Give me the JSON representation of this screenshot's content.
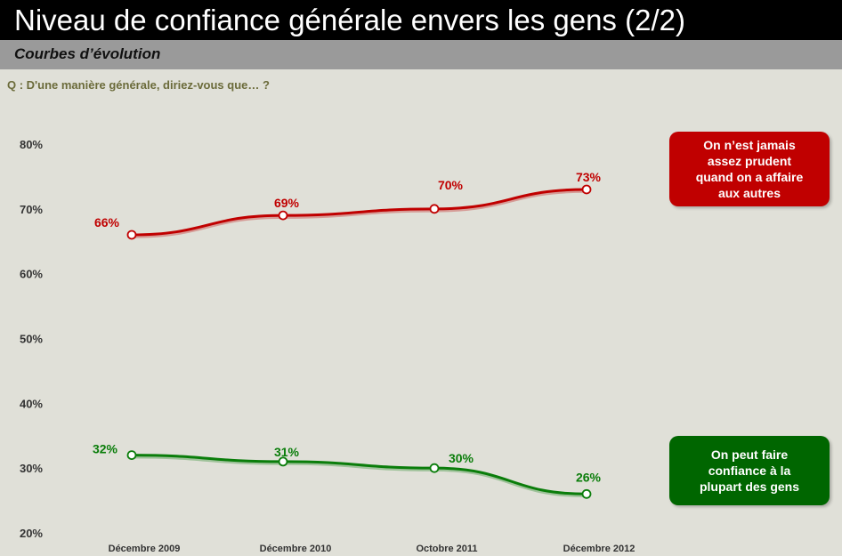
{
  "header": {
    "title": "Niveau de confiance générale envers les gens (2/2)",
    "subtitle": "Courbes d’évolution",
    "question": "Q : D'une manière générale, diriez-vous que… ?"
  },
  "chart_data": {
    "type": "line",
    "categories": [
      "Décembre 2009",
      "Décembre 2010",
      "Octobre 2011",
      "Décembre 2012"
    ],
    "ylim": [
      20,
      80
    ],
    "yticks": [
      "80%",
      "70%",
      "60%",
      "50%",
      "40%",
      "30%",
      "20%"
    ],
    "grid": false,
    "series": [
      {
        "name": "On n’est jamais assez prudent quand on a affaire aux autres",
        "values": [
          66,
          69,
          70,
          73
        ],
        "labels": [
          "66%",
          "69%",
          "70%",
          "73%"
        ],
        "color": "#c00000"
      },
      {
        "name": "On peut faire confiance à la plupart des gens",
        "values": [
          32,
          31,
          30,
          26
        ],
        "labels": [
          "32%",
          "31%",
          "30%",
          "26%"
        ],
        "color": "#0a7d0a"
      }
    ],
    "legend_placement": "right"
  },
  "legend": {
    "red_label": "On n’est jamais assez prudent quand on a affaire aux autres",
    "green_label": "On peut faire confiance à la plupart des gens"
  }
}
